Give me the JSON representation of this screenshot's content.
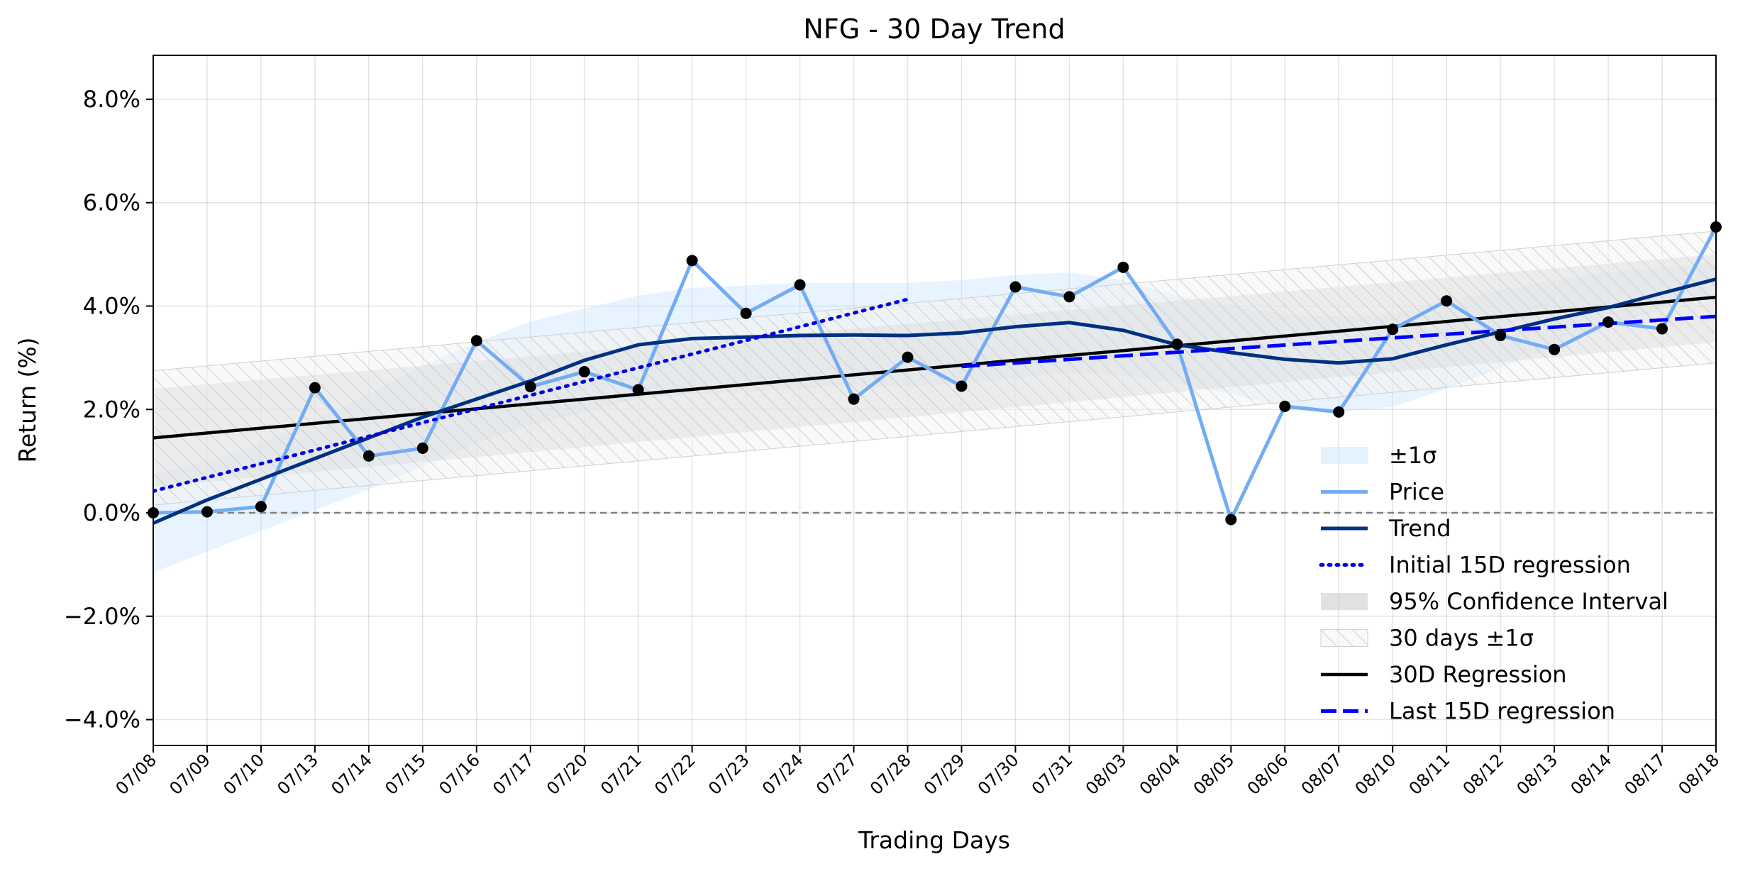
{
  "chart_data": {
    "type": "line",
    "title": "NFG - 30 Day Trend",
    "xlabel": "Trading Days",
    "ylabel": "Return (%)",
    "categories": [
      "07/08",
      "07/09",
      "07/10",
      "07/13",
      "07/14",
      "07/15",
      "07/16",
      "07/17",
      "07/20",
      "07/21",
      "07/22",
      "07/23",
      "07/24",
      "07/27",
      "07/28",
      "07/29",
      "07/30",
      "07/31",
      "08/03",
      "08/04",
      "08/05",
      "08/06",
      "08/07",
      "08/10",
      "08/11",
      "08/12",
      "08/13",
      "08/14",
      "08/17",
      "08/18"
    ],
    "ylim": [
      -4.5,
      8.85
    ],
    "yticks": [
      -4,
      -2,
      0,
      2,
      4,
      6,
      8
    ],
    "ytick_labels": [
      "−4.0%",
      "−2.0%",
      "0.0%",
      "2.0%",
      "4.0%",
      "6.0%",
      "8.0%"
    ],
    "grid": true,
    "zero_line": 0,
    "legend_position": "lower right",
    "series": [
      {
        "name": "±1σ",
        "kind": "band",
        "color": "#bbdefb",
        "lower": [
          -1.15,
          -0.75,
          -0.35,
          0.05,
          0.45,
          0.9,
          1.35,
          1.7,
          1.95,
          2.2,
          2.3,
          2.35,
          2.4,
          2.45,
          2.45,
          2.5,
          2.6,
          2.7,
          2.65,
          2.5,
          2.3,
          2.05,
          1.95,
          2.05,
          2.4,
          2.8,
          3.2,
          3.6,
          3.95,
          4.2
        ],
        "upper": [
          0.75,
          1.0,
          1.35,
          1.8,
          2.3,
          2.85,
          3.3,
          3.7,
          3.95,
          4.2,
          4.35,
          4.4,
          4.45,
          4.45,
          4.45,
          4.5,
          4.6,
          4.65,
          4.5,
          4.2,
          4.0,
          3.85,
          3.8,
          3.85,
          4.1,
          4.3,
          4.5,
          4.65,
          4.75,
          4.85
        ]
      },
      {
        "name": "Price",
        "kind": "line",
        "color": "#74acf3",
        "values": [
          0.0,
          0.02,
          0.12,
          2.42,
          1.1,
          1.25,
          3.33,
          2.44,
          2.73,
          2.38,
          4.88,
          3.86,
          4.41,
          2.2,
          3.01,
          2.45,
          4.37,
          4.18,
          4.75,
          3.26,
          -0.13,
          2.06,
          1.95,
          3.55,
          4.1,
          3.43,
          3.16,
          3.69,
          3.56,
          5.53
        ]
      },
      {
        "name": "Trend",
        "kind": "line",
        "color": "#003080",
        "values": [
          -0.2,
          0.25,
          0.65,
          1.05,
          1.45,
          1.85,
          2.2,
          2.55,
          2.95,
          3.25,
          3.37,
          3.4,
          3.43,
          3.44,
          3.43,
          3.48,
          3.6,
          3.68,
          3.53,
          3.25,
          3.1,
          2.97,
          2.9,
          2.98,
          3.25,
          3.5,
          3.75,
          3.97,
          4.25,
          4.52
        ]
      },
      {
        "name": "Initial 15D regression",
        "kind": "line",
        "style": "dotted",
        "color": "#0000e0",
        "x": [
          0,
          14
        ],
        "values": [
          0.42,
          4.13
        ]
      },
      {
        "name": "95% Confidence Interval",
        "kind": "band",
        "color": "#c4c4c4",
        "lower": [
          0.5,
          3.3
        ],
        "upper": [
          2.4,
          5.0
        ],
        "x": [
          0,
          29
        ]
      },
      {
        "name": "30 days ±1σ",
        "kind": "band",
        "style": "hatched",
        "color": "#d8d8d8",
        "lower": [
          0.15,
          2.9
        ],
        "upper": [
          2.75,
          5.45
        ],
        "x": [
          0,
          29
        ]
      },
      {
        "name": "30D Regression",
        "kind": "line",
        "color": "#000000",
        "x": [
          0,
          29
        ],
        "values": [
          1.45,
          4.17
        ]
      },
      {
        "name": "Last 15D regression",
        "kind": "line",
        "style": "dashed",
        "color": "#0000ff",
        "x": [
          15,
          29
        ],
        "values": [
          2.83,
          3.8
        ]
      }
    ]
  }
}
